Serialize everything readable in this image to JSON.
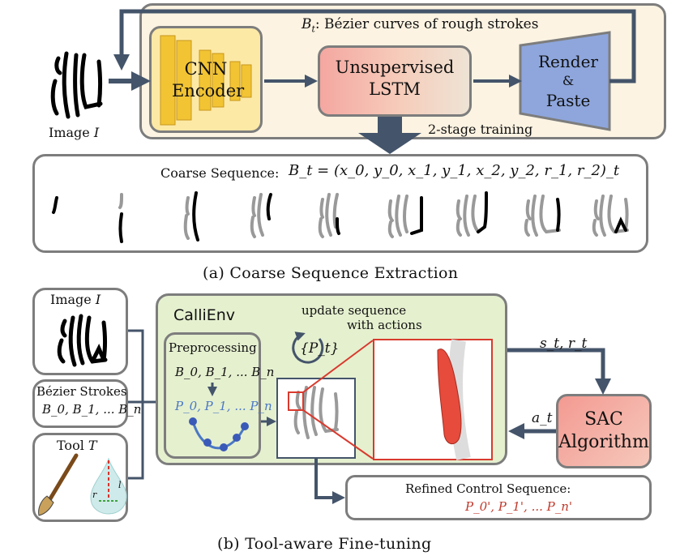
{
  "part_a": {
    "bezier_label": "B",
    "bezier_label_sub": "t",
    "bezier_label_rest": ": Bézier curves of rough strokes",
    "image_label": "Image ",
    "image_label_var": "I",
    "cnn_encoder": [
      "CNN",
      "Encoder"
    ],
    "lstm": [
      "Unsupervised",
      "LSTM"
    ],
    "render_paste": [
      "Render",
      "&",
      "Paste"
    ],
    "two_stage": "2-stage training",
    "coarse_sequence_label": "Coarse Sequence:",
    "coarse_sequence_formula": "B_t = (x_0, y_0, x_1, y_1, x_2, y_2, r_1, r_2)_t",
    "caption": "(a) Coarse Sequence Extraction"
  },
  "part_b": {
    "image_label": "Image ",
    "image_label_var": "I",
    "bezier_strokes_title": "Bézier Strokes",
    "bezier_strokes_list": "B_0, B_1, ... B_n",
    "tool_label": "Tool ",
    "tool_label_var": "T",
    "tool_r": "r",
    "tool_l": "l",
    "callienv": "CalliEnv",
    "preprocessing": "Preprocessing",
    "pre_b": "B_0, B_1, ... B_n",
    "pre_p": "P_0, P_1, ... P_n",
    "update_seq": [
      "update sequence",
      "with actions"
    ],
    "pt_label": "{P_t}",
    "state_reward": "s_t, r_t",
    "action": "a_t",
    "sac": [
      "SAC",
      "Algorithm"
    ],
    "refined_title": "Refined Control Sequence:",
    "refined_values": "P_0', P_1', ... P_n'",
    "caption": "(b) Tool-aware Fine-tuning"
  },
  "colors": {
    "panel_border": "#7d7d7d",
    "arrow": "#44546a",
    "top_bg": "#fcf3e2",
    "cnn_bg": "#fde9a6",
    "cnn_layer": "#f2c434",
    "lstm_bg": "#f2b5a8",
    "render_bg": "#8ea6dc",
    "callienv_bg": "#e5f0cf",
    "sac_bg": "#f2a59a",
    "blue_text": "#4a78c4",
    "red_text": "#c0392b"
  }
}
